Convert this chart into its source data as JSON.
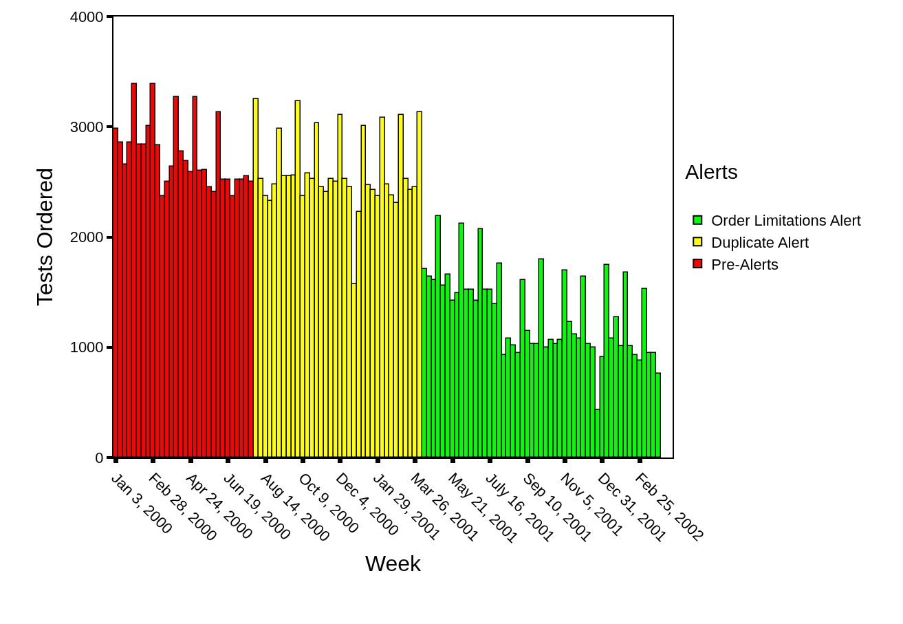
{
  "chart_data": {
    "type": "bar",
    "xlabel": "Week",
    "ylabel": "Tests Ordered",
    "legend_title": "Alerts",
    "categories": [
      "Jan 3, 2000",
      null,
      null,
      null,
      null,
      null,
      null,
      null,
      "Feb 28, 2000",
      null,
      null,
      null,
      null,
      null,
      null,
      null,
      "Apr 24, 2000",
      null,
      null,
      null,
      null,
      null,
      null,
      null,
      "Jun 19, 2000",
      null,
      null,
      null,
      null,
      null,
      null,
      null,
      "Aug 14, 2000",
      null,
      null,
      null,
      null,
      null,
      null,
      null,
      "Oct 9, 2000",
      null,
      null,
      null,
      null,
      null,
      null,
      null,
      "Dec 4, 2000",
      null,
      null,
      null,
      null,
      null,
      null,
      null,
      "Jan 29, 2001",
      null,
      null,
      null,
      null,
      null,
      null,
      null,
      "Mar 26, 2001",
      null,
      null,
      null,
      null,
      null,
      null,
      null,
      "May 21, 2001",
      null,
      null,
      null,
      null,
      null,
      null,
      null,
      "July 16, 2001",
      null,
      null,
      null,
      null,
      null,
      null,
      null,
      "Sep 10, 2001",
      null,
      null,
      null,
      null,
      null,
      null,
      null,
      "Nov 5, 2001",
      null,
      null,
      null,
      null,
      null,
      null,
      null,
      "Dec 31, 2001",
      null,
      null,
      null,
      null,
      null,
      null,
      null,
      "Feb 25, 2002",
      null,
      null,
      null,
      null
    ],
    "series": [
      {
        "name": "Order Limitations Alert",
        "color": "#00ff00",
        "values": [
          null,
          null,
          null,
          null,
          null,
          null,
          null,
          null,
          null,
          null,
          null,
          null,
          null,
          null,
          null,
          null,
          null,
          null,
          null,
          null,
          null,
          null,
          null,
          null,
          null,
          null,
          null,
          null,
          null,
          null,
          null,
          null,
          null,
          null,
          null,
          null,
          null,
          null,
          null,
          null,
          null,
          null,
          null,
          null,
          null,
          null,
          null,
          null,
          null,
          null,
          null,
          null,
          null,
          null,
          null,
          null,
          null,
          null,
          null,
          null,
          null,
          null,
          null,
          null,
          null,
          null,
          1710,
          1640,
          1610,
          2190,
          1560,
          1660,
          1420,
          1490,
          2120,
          1520,
          1520,
          1420,
          2070,
          1520,
          1520,
          1390,
          1760,
          930,
          1080,
          1020,
          950,
          1610,
          1150,
          1030,
          1030,
          1800,
          1000,
          1070,
          1030,
          1070,
          1700,
          1230,
          1120,
          1080,
          1640,
          1030,
          1000,
          430,
          910,
          1750,
          1080,
          1270,
          1010,
          1680,
          1010,
          930,
          880,
          1530,
          950,
          950,
          760
        ]
      },
      {
        "name": "Duplicate Alert",
        "color": "#ffff00",
        "values": [
          null,
          null,
          null,
          null,
          null,
          null,
          null,
          null,
          null,
          null,
          null,
          null,
          null,
          null,
          null,
          null,
          null,
          null,
          null,
          null,
          null,
          null,
          null,
          null,
          null,
          null,
          null,
          null,
          null,
          null,
          3250,
          2530,
          2370,
          2330,
          2480,
          2980,
          2550,
          2550,
          2560,
          3230,
          2370,
          2580,
          2530,
          3030,
          2450,
          2410,
          2530,
          2500,
          3110,
          2530,
          2450,
          1570,
          2230,
          3010,
          2470,
          2430,
          2370,
          3080,
          2480,
          2380,
          2310,
          3110,
          2530,
          2430,
          2450,
          3130,
          null,
          null,
          null,
          null,
          null,
          null,
          null,
          null,
          null,
          null,
          null,
          null,
          null,
          null,
          null,
          null,
          null,
          null,
          null,
          null,
          null,
          null,
          null,
          null,
          null,
          null,
          null,
          null,
          null,
          null,
          null,
          null,
          null,
          null,
          null,
          null,
          null,
          null,
          null,
          null,
          null,
          null,
          null,
          null,
          null,
          null,
          null,
          null,
          null,
          null,
          null
        ]
      },
      {
        "name": "Pre-Alerts",
        "color": "#ff0000",
        "values": [
          2980,
          2860,
          2660,
          2860,
          3390,
          2840,
          2840,
          3010,
          3390,
          2830,
          2370,
          2500,
          2640,
          3270,
          2780,
          2690,
          2590,
          3270,
          2600,
          2610,
          2450,
          2410,
          3130,
          2520,
          2520,
          2370,
          2520,
          2520,
          2550,
          2500,
          null,
          null,
          null,
          null,
          null,
          null,
          null,
          null,
          null,
          null,
          null,
          null,
          null,
          null,
          null,
          null,
          null,
          null,
          null,
          null,
          null,
          null,
          null,
          null,
          null,
          null,
          null,
          null,
          null,
          null,
          null,
          null,
          null,
          null,
          null,
          null,
          null,
          null,
          null,
          null,
          null,
          null,
          null,
          null,
          null,
          null,
          null,
          null,
          null,
          null,
          null,
          null,
          null,
          null,
          null,
          null,
          null,
          null,
          null,
          null,
          null,
          null,
          null,
          null,
          null,
          null,
          null,
          null,
          null,
          null,
          null,
          null,
          null,
          null,
          null,
          null,
          null,
          null,
          null,
          null,
          null,
          null,
          null,
          null,
          null,
          null,
          null
        ]
      }
    ],
    "ylim": [
      0,
      4000
    ],
    "yticks": [
      0,
      1000,
      2000,
      3000,
      4000
    ],
    "legend": "right"
  }
}
